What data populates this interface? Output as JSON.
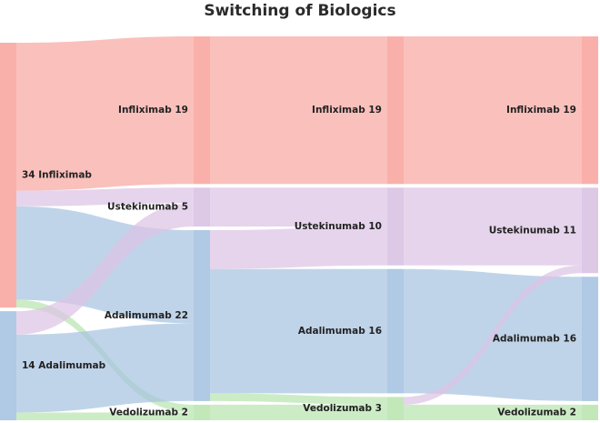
{
  "chart_data": {
    "type": "sankey",
    "title": "Switching of Biologics",
    "stages": [
      [
        {
          "id": "A0",
          "label": "34 Infliximab",
          "value": 34,
          "drug": "Infliximab"
        },
        {
          "id": "B0",
          "label": "14 Adalimumab",
          "value": 14,
          "drug": "Adalimumab"
        }
      ],
      [
        {
          "id": "A1",
          "label": "Infliximab 19",
          "value": 19,
          "drug": "Infliximab"
        },
        {
          "id": "B1",
          "label": "Ustekinumab 5",
          "value": 5,
          "drug": "Ustekinumab"
        },
        {
          "id": "C1",
          "label": "Adalimumab 22",
          "value": 22,
          "drug": "Adalimumab"
        },
        {
          "id": "D1",
          "label": "Vedolizumab 2",
          "value": 2,
          "drug": "Vedolizumab"
        }
      ],
      [
        {
          "id": "A2",
          "label": "Infliximab 19",
          "value": 19,
          "drug": "Infliximab"
        },
        {
          "id": "B2",
          "label": "Ustekinumab 10",
          "value": 10,
          "drug": "Ustekinumab"
        },
        {
          "id": "C2",
          "label": "Adalimumab 16",
          "value": 16,
          "drug": "Adalimumab"
        },
        {
          "id": "D2",
          "label": "Vedolizumab 3",
          "value": 3,
          "drug": "Vedolizumab"
        }
      ],
      [
        {
          "id": "A3",
          "label": "Infliximab 19",
          "value": 19,
          "drug": "Infliximab"
        },
        {
          "id": "B3",
          "label": "Ustekinumab 11",
          "value": 11,
          "drug": "Ustekinumab"
        },
        {
          "id": "C3",
          "label": "Adalimumab 16",
          "value": 16,
          "drug": "Adalimumab"
        },
        {
          "id": "D3",
          "label": "Vedolizumab 2",
          "value": 2,
          "drug": "Vedolizumab"
        }
      ]
    ],
    "links": [
      {
        "source": "A0",
        "target": "A1",
        "value": 19
      },
      {
        "source": "A0",
        "target": "B1",
        "value": 2
      },
      {
        "source": "A0",
        "target": "C1",
        "value": 12
      },
      {
        "source": "A0",
        "target": "D1",
        "value": 1
      },
      {
        "source": "B0",
        "target": "B1",
        "value": 3
      },
      {
        "source": "B0",
        "target": "C1",
        "value": 10
      },
      {
        "source": "B0",
        "target": "D1",
        "value": 1
      },
      {
        "source": "A1",
        "target": "A2",
        "value": 19
      },
      {
        "source": "B1",
        "target": "B2",
        "value": 5
      },
      {
        "source": "C1",
        "target": "B2",
        "value": 5
      },
      {
        "source": "C1",
        "target": "C2",
        "value": 16
      },
      {
        "source": "C1",
        "target": "D2",
        "value": 1
      },
      {
        "source": "D1",
        "target": "D2",
        "value": 2
      },
      {
        "source": "A2",
        "target": "A3",
        "value": 19
      },
      {
        "source": "B2",
        "target": "B3",
        "value": 10
      },
      {
        "source": "C2",
        "target": "C3",
        "value": 16
      },
      {
        "source": "D2",
        "target": "B3",
        "value": 1
      },
      {
        "source": "D2",
        "target": "D3",
        "value": 2
      }
    ],
    "colors": {
      "Infliximab": "#f8a8a2",
      "Ustekinumab": "#dcc4e4",
      "Adalimumab": "#a8c4e0",
      "Vedolizumab": "#b8e4b0"
    },
    "node_colors": {
      "Infliximab": "#fab0aa",
      "Ustekinumab": "#ddc8e6",
      "Adalimumab": "#b0c9e4",
      "Vedolizumab": "#c2e8ba"
    }
  }
}
